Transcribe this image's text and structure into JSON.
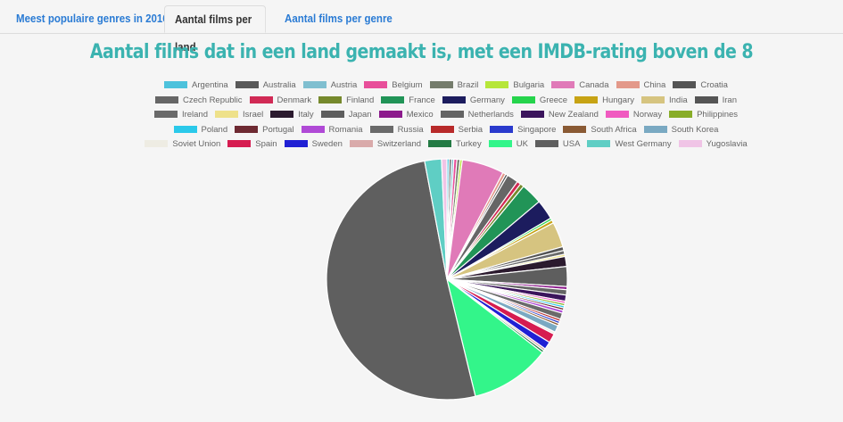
{
  "tabs": [
    {
      "label": "Meest populaire genres in 2016",
      "active": false
    },
    {
      "label": "Aantal films per land",
      "active": true
    },
    {
      "label": "Aantal films per genre",
      "active": false
    }
  ],
  "chart_data": {
    "type": "pie",
    "title": "Aantal films dat in een land gemaakt is, met een IMDB-rating boven de 8",
    "legend_position": "top",
    "series": [
      {
        "name": "Argentina",
        "value": 0.3,
        "color": "#4dc2dc"
      },
      {
        "name": "Australia",
        "value": 0.3,
        "color": "#5a5a5a"
      },
      {
        "name": "Austria",
        "value": 0.3,
        "color": "#80bfd0"
      },
      {
        "name": "Belgium",
        "value": 0.4,
        "color": "#e84f9a"
      },
      {
        "name": "Brazil",
        "value": 0.4,
        "color": "#757c6c"
      },
      {
        "name": "Bulgaria",
        "value": 0.3,
        "color": "#b6e63a"
      },
      {
        "name": "Canada",
        "value": 5.5,
        "color": "#e07ab8"
      },
      {
        "name": "China",
        "value": 0.4,
        "color": "#e3998a"
      },
      {
        "name": "Croatia",
        "value": 0.3,
        "color": "#555555"
      },
      {
        "name": "Czech Republic",
        "value": 1.5,
        "color": "#666666"
      },
      {
        "name": "Denmark",
        "value": 0.5,
        "color": "#d12a55"
      },
      {
        "name": "Finland",
        "value": 0.5,
        "color": "#76892c"
      },
      {
        "name": "France",
        "value": 2.8,
        "color": "#219457"
      },
      {
        "name": "Germany",
        "value": 2.6,
        "color": "#1c1c5e"
      },
      {
        "name": "Greece",
        "value": 0.3,
        "color": "#26d44c"
      },
      {
        "name": "Hungary",
        "value": 0.4,
        "color": "#c7a314"
      },
      {
        "name": "India",
        "value": 3.3,
        "color": "#d6c480"
      },
      {
        "name": "Iran",
        "value": 0.5,
        "color": "#555555"
      },
      {
        "name": "Ireland",
        "value": 0.5,
        "color": "#6a6a6a"
      },
      {
        "name": "Israel",
        "value": 0.3,
        "color": "#eee18a"
      },
      {
        "name": "Italy",
        "value": 1.3,
        "color": "#2b1a2e"
      },
      {
        "name": "Japan",
        "value": 2.6,
        "color": "#5e5e5e"
      },
      {
        "name": "Mexico",
        "value": 0.4,
        "color": "#8c1a8c"
      },
      {
        "name": "Netherlands",
        "value": 0.7,
        "color": "#646464"
      },
      {
        "name": "New Zealand",
        "value": 0.8,
        "color": "#3b145c"
      },
      {
        "name": "Norway",
        "value": 0.3,
        "color": "#f05ac0"
      },
      {
        "name": "Philippines",
        "value": 0.3,
        "color": "#88ad28"
      },
      {
        "name": "Poland",
        "value": 0.3,
        "color": "#2bc9ea"
      },
      {
        "name": "Portugal",
        "value": 0.3,
        "color": "#6e2a32"
      },
      {
        "name": "Romania",
        "value": 0.4,
        "color": "#b04ad6"
      },
      {
        "name": "Russia",
        "value": 0.8,
        "color": "#6a6a6a"
      },
      {
        "name": "Serbia",
        "value": 0.3,
        "color": "#b82a2a"
      },
      {
        "name": "Singapore",
        "value": 0.3,
        "color": "#2a3acd"
      },
      {
        "name": "South Africa",
        "value": 0.3,
        "color": "#8a5a34"
      },
      {
        "name": "South Korea",
        "value": 0.9,
        "color": "#7aa9c2"
      },
      {
        "name": "Soviet Union",
        "value": 0.3,
        "color": "#eeece3"
      },
      {
        "name": "Spain",
        "value": 1.2,
        "color": "#d61c50"
      },
      {
        "name": "Sweden",
        "value": 1.0,
        "color": "#2020d4"
      },
      {
        "name": "Switzerland",
        "value": 0.3,
        "color": "#d9aaaa"
      },
      {
        "name": "Turkey",
        "value": 0.3,
        "color": "#237a44"
      },
      {
        "name": "UK",
        "value": 10.5,
        "color": "#33f58a"
      },
      {
        "name": "USA",
        "value": 49.5,
        "color": "#5f5f5f"
      },
      {
        "name": "West Germany",
        "value": 2.2,
        "color": "#5fcec4"
      },
      {
        "name": "Yugoslavia",
        "value": 0.7,
        "color": "#f0c4e6"
      }
    ]
  }
}
